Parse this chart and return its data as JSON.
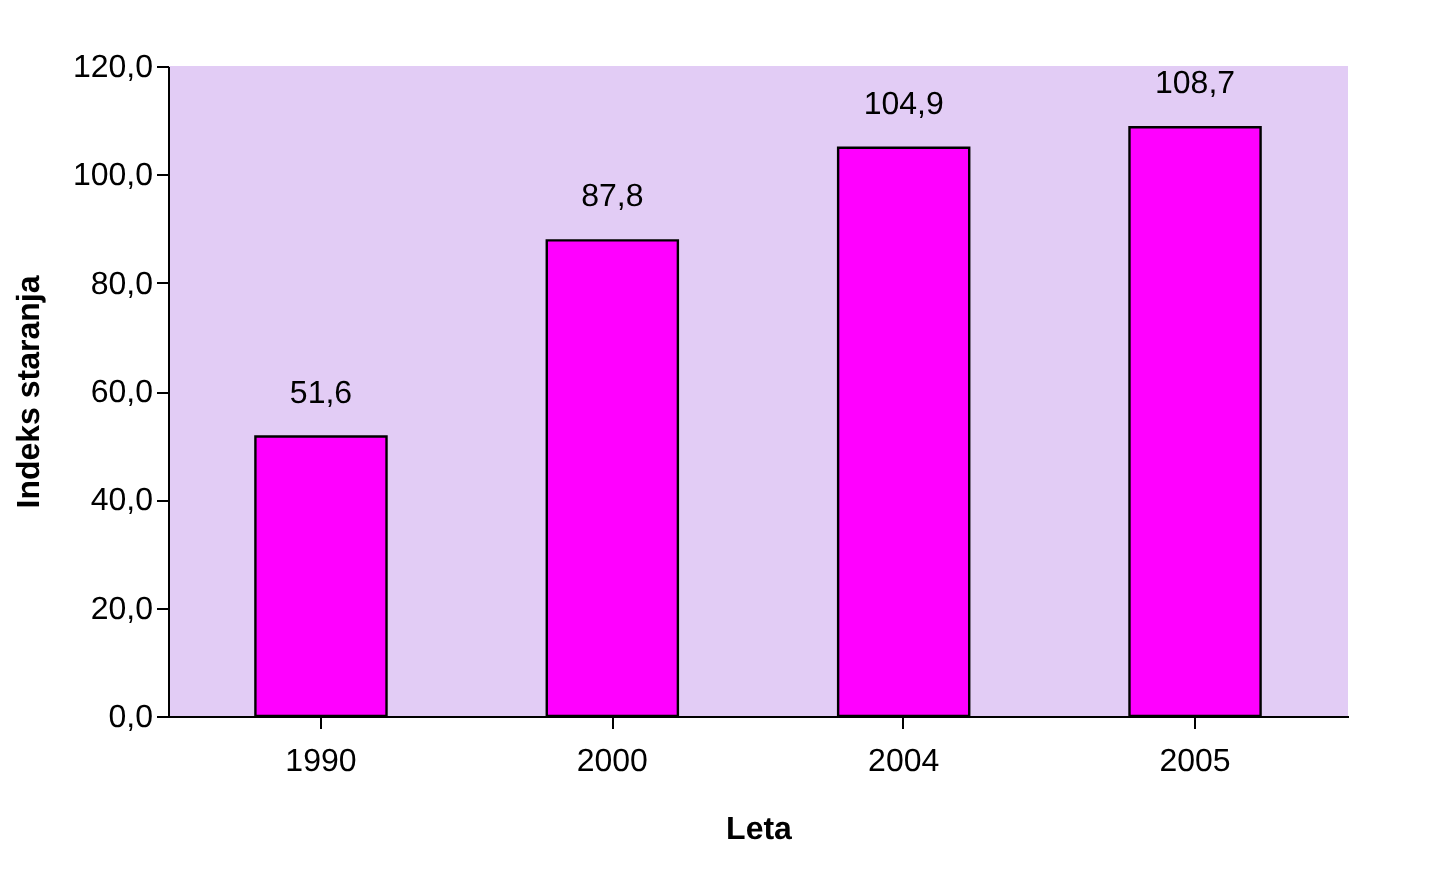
{
  "chart_data": {
    "type": "bar",
    "xlabel": "Leta",
    "ylabel": "Indeks staranja",
    "categories": [
      "1990",
      "2000",
      "2004",
      "2005"
    ],
    "values": [
      51.6,
      87.8,
      104.9,
      108.7
    ],
    "value_labels": [
      "51,6",
      "87,8",
      "104,9",
      "108,7"
    ],
    "color": "#ff00ff",
    "ylim": [
      0,
      120
    ],
    "yticks": [
      {
        "value": 0,
        "label": "0,0"
      },
      {
        "value": 20,
        "label": "20,0"
      },
      {
        "value": 40,
        "label": "40,0"
      },
      {
        "value": 60,
        "label": "60,0"
      },
      {
        "value": 80,
        "label": "80,0"
      },
      {
        "value": 100,
        "label": "100,0"
      },
      {
        "value": 120,
        "label": "120,0"
      }
    ],
    "grid": false
  }
}
